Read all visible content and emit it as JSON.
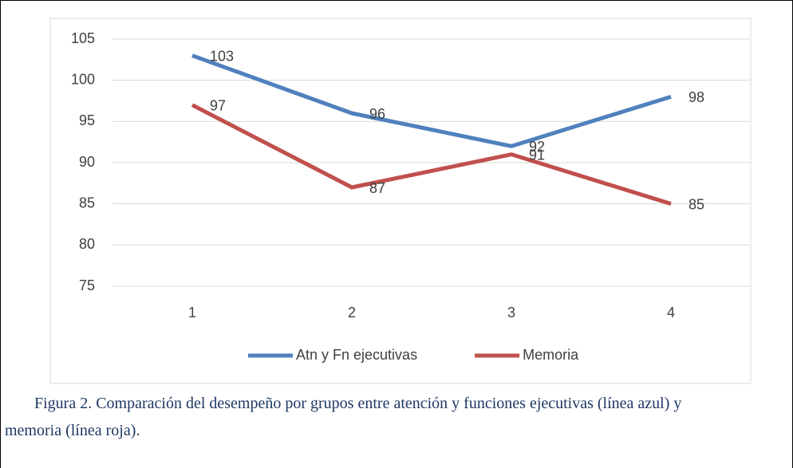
{
  "chart_data": {
    "type": "line",
    "categories": [
      "1",
      "2",
      "3",
      "4"
    ],
    "series": [
      {
        "name": "Atn y Fn ejecutivas",
        "color": "#4f81bd",
        "values": [
          103,
          96,
          92,
          98
        ]
      },
      {
        "name": "Memoria",
        "color": "#c0504d",
        "values": [
          97,
          87,
          91,
          85
        ]
      }
    ],
    "ylim": [
      75,
      105
    ],
    "yticks": [
      75,
      80,
      85,
      90,
      95,
      100,
      105
    ],
    "grid": true,
    "legend": "bottom",
    "caption": "Figura 2. Comparación del desempeño por grupos entre atención y funciones ejecutivas (línea azul) y memoria (línea roja)."
  }
}
